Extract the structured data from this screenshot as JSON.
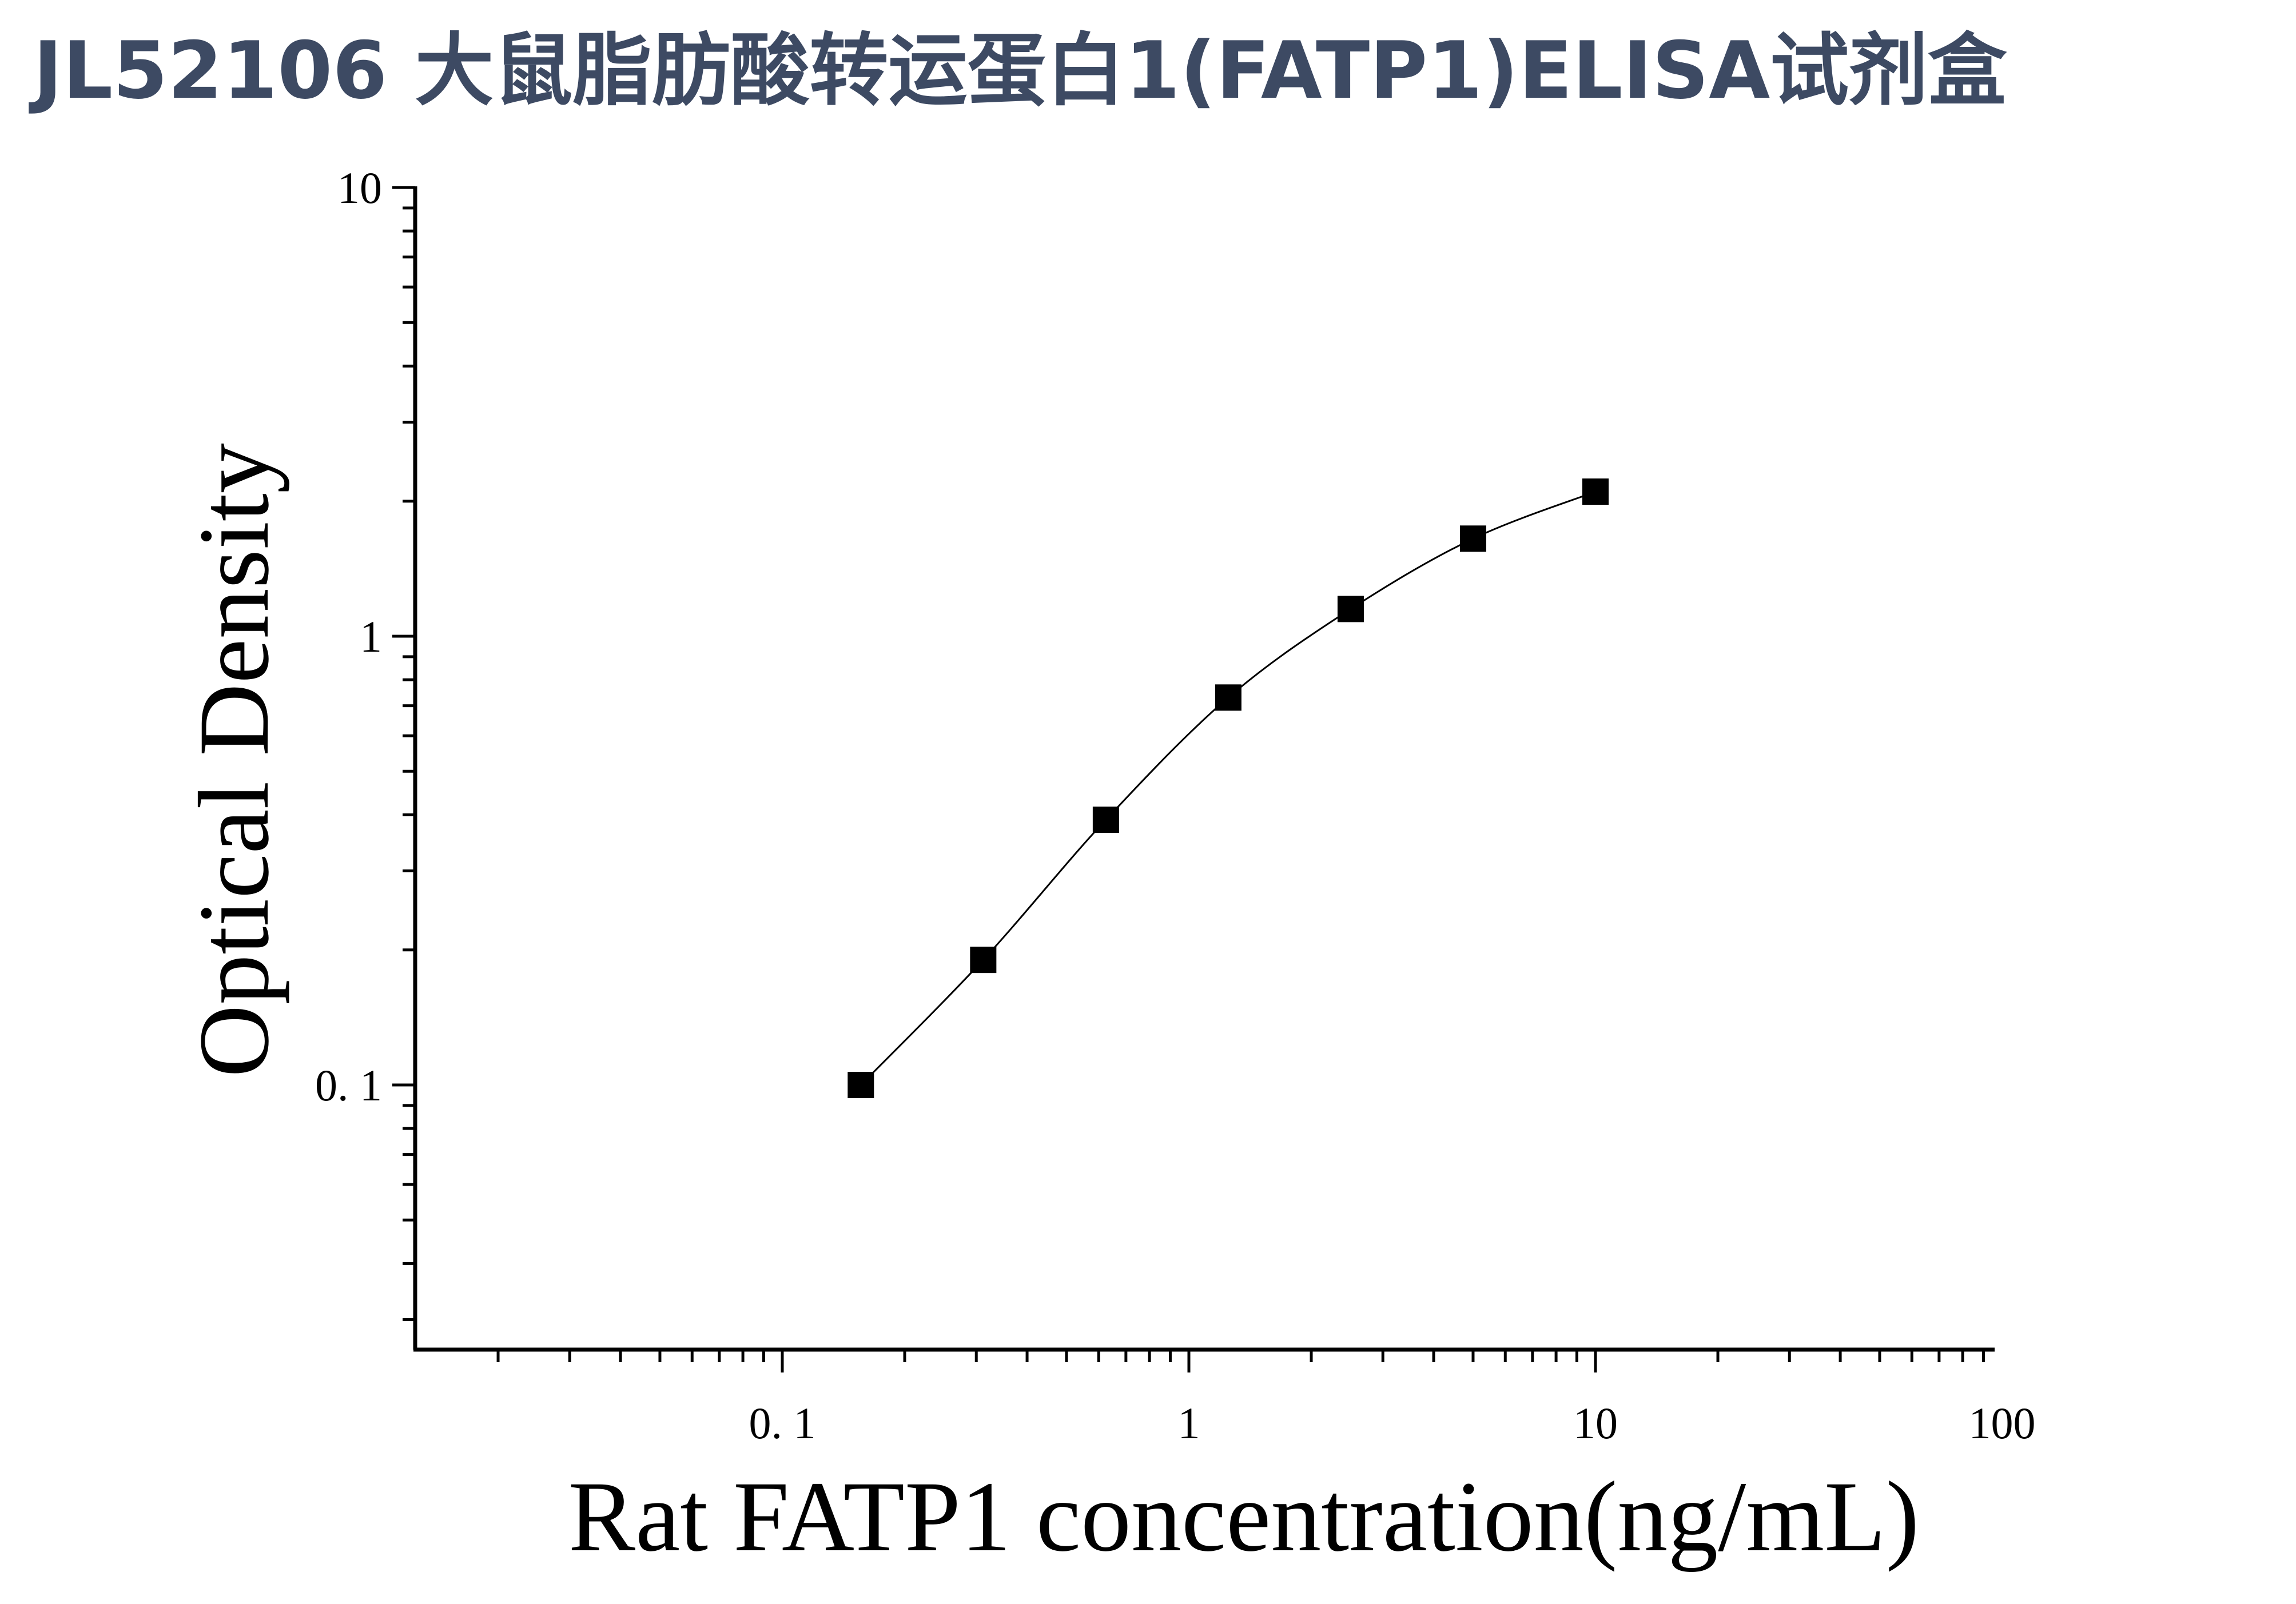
{
  "title": "JL52106 大鼠脂肪酸转运蛋白1(FATP1)ELISA试剂盒",
  "chart_data": {
    "type": "scatter",
    "title": "JL52106 大鼠脂肪酸转运蛋白1(FATP1)ELISA试剂盒",
    "xlabel": "Rat FATP1 concentration(ng/mL)",
    "ylabel": "Optical Density",
    "x_scale": "log",
    "y_scale": "log",
    "xlim": [
      0.01,
      100
    ],
    "ylim": [
      0.025,
      10
    ],
    "x_ticks": [
      {
        "value": 0.1,
        "label": "0. 1"
      },
      {
        "value": 1,
        "label": "1"
      },
      {
        "value": 10,
        "label": "10"
      },
      {
        "value": 100,
        "label": "100"
      }
    ],
    "y_ticks": [
      {
        "value": 0.1,
        "label": "0. 1"
      },
      {
        "value": 1,
        "label": "1"
      },
      {
        "value": 10,
        "label": "10"
      }
    ],
    "grid": false,
    "marker": "square",
    "marker_color": "#000000",
    "fit_line": "smooth curve through points",
    "series": [
      {
        "x": [
          0.156,
          0.312,
          0.625,
          1.25,
          2.5,
          5,
          10
        ],
        "y": [
          0.1,
          0.19,
          0.39,
          0.73,
          1.15,
          1.65,
          2.1
        ]
      }
    ]
  }
}
